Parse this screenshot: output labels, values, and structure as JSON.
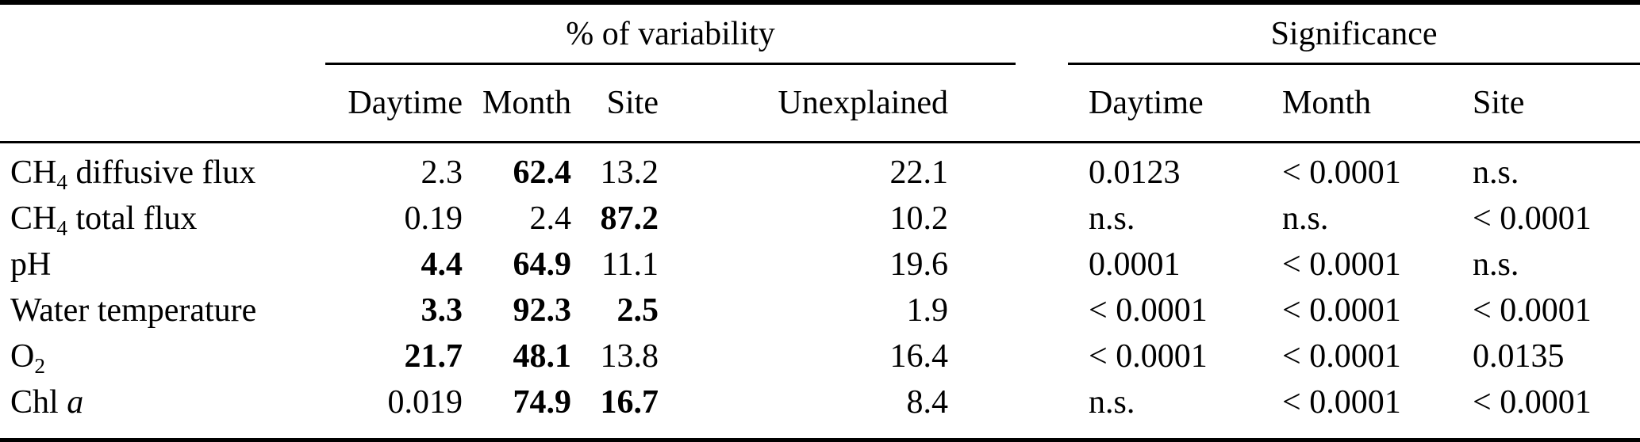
{
  "table": {
    "colors": {
      "text": "#000000",
      "rule": "#000000",
      "background": "#ffffff"
    },
    "groups": {
      "variability": "% of variability",
      "significance": "Significance"
    },
    "var_subheaders": [
      "Daytime",
      "Month",
      "Site",
      "Unexplained"
    ],
    "sig_subheaders": [
      "Daytime",
      "Month",
      "Site"
    ],
    "rows": [
      {
        "label": [
          {
            "text": "CH"
          },
          {
            "text": "4",
            "style": "sub"
          },
          {
            "text": " diffusive flux"
          }
        ],
        "variability": [
          {
            "v": "2.3",
            "bold": false
          },
          {
            "v": "62.4",
            "bold": true
          },
          {
            "v": "13.2",
            "bold": false
          },
          {
            "v": "22.1",
            "bold": false
          }
        ],
        "significance": [
          "0.0123",
          "< 0.0001",
          "n.s."
        ]
      },
      {
        "label": [
          {
            "text": "CH"
          },
          {
            "text": "4",
            "style": "sub"
          },
          {
            "text": " total flux"
          }
        ],
        "variability": [
          {
            "v": "0.19",
            "bold": false
          },
          {
            "v": "2.4",
            "bold": false
          },
          {
            "v": "87.2",
            "bold": true
          },
          {
            "v": "10.2",
            "bold": false
          }
        ],
        "significance": [
          "n.s.",
          "n.s.",
          "< 0.0001"
        ]
      },
      {
        "label": [
          {
            "text": "pH"
          }
        ],
        "variability": [
          {
            "v": "4.4",
            "bold": true
          },
          {
            "v": "64.9",
            "bold": true
          },
          {
            "v": "11.1",
            "bold": false
          },
          {
            "v": "19.6",
            "bold": false
          }
        ],
        "significance": [
          "0.0001",
          "< 0.0001",
          "n.s."
        ]
      },
      {
        "label": [
          {
            "text": "Water temperature"
          }
        ],
        "variability": [
          {
            "v": "3.3",
            "bold": true
          },
          {
            "v": "92.3",
            "bold": true
          },
          {
            "v": "2.5",
            "bold": true
          },
          {
            "v": "1.9",
            "bold": false
          }
        ],
        "significance": [
          "< 0.0001",
          "< 0.0001",
          "< 0.0001"
        ]
      },
      {
        "label": [
          {
            "text": "O"
          },
          {
            "text": "2",
            "style": "sub"
          }
        ],
        "variability": [
          {
            "v": "21.7",
            "bold": true
          },
          {
            "v": "48.1",
            "bold": true
          },
          {
            "v": "13.8",
            "bold": false
          },
          {
            "v": "16.4",
            "bold": false
          }
        ],
        "significance": [
          "< 0.0001",
          "< 0.0001",
          "0.0135"
        ]
      },
      {
        "label": [
          {
            "text": "Chl "
          },
          {
            "text": "a",
            "style": "italic"
          }
        ],
        "variability": [
          {
            "v": "0.019",
            "bold": false
          },
          {
            "v": "74.9",
            "bold": true
          },
          {
            "v": "16.7",
            "bold": true
          },
          {
            "v": "8.4",
            "bold": false
          }
        ],
        "significance": [
          "n.s.",
          "< 0.0001",
          "< 0.0001"
        ]
      }
    ]
  }
}
